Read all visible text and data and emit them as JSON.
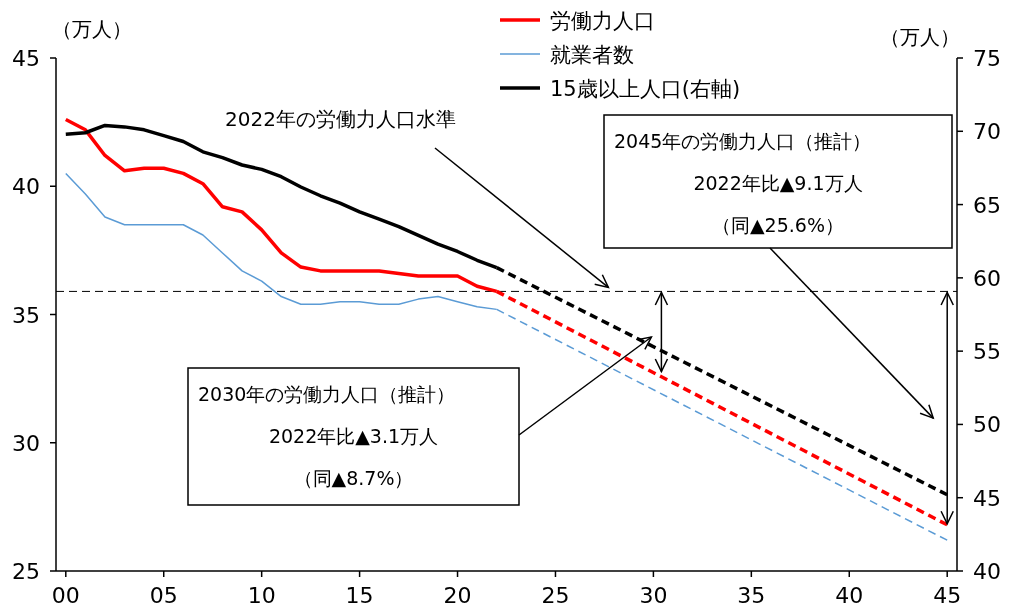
{
  "chart_data": {
    "type": "line",
    "ylabel": "（万人）",
    "y2label": "（万人）",
    "xlim": [
      1999.5,
      2045.5
    ],
    "xticks": [
      {
        "value": 2000,
        "label": "00"
      },
      {
        "value": 2005,
        "label": "05"
      },
      {
        "value": 2010,
        "label": "10"
      },
      {
        "value": 2015,
        "label": "15"
      },
      {
        "value": 2020,
        "label": "20"
      },
      {
        "value": 2025,
        "label": "25"
      },
      {
        "value": 2030,
        "label": "30"
      },
      {
        "value": 2035,
        "label": "35"
      },
      {
        "value": 2040,
        "label": "40"
      },
      {
        "value": 2045,
        "label": "45"
      }
    ],
    "ylim": [
      25,
      45
    ],
    "yticks": [
      25,
      30,
      35,
      40,
      45
    ],
    "y2lim": [
      40,
      75
    ],
    "y2ticks": [
      40,
      45,
      50,
      55,
      60,
      65,
      70,
      75
    ],
    "grid": false,
    "legend": "top",
    "marker": "none",
    "series": [
      {
        "name": "労働力人口",
        "color": "#ff0000",
        "line_style": "solid",
        "x": [
          2000,
          2001,
          2002,
          2003,
          2004,
          2005,
          2006,
          2007,
          2008,
          2009,
          2010,
          2011,
          2012,
          2013,
          2014,
          2015,
          2016,
          2017,
          2018,
          2019,
          2020,
          2021,
          2022
        ],
        "values": [
          42.6,
          42.2,
          41.2,
          40.6,
          40.7,
          40.7,
          40.5,
          40.1,
          39.2,
          39.0,
          38.3,
          37.4,
          36.85,
          36.7,
          36.7,
          36.7,
          36.7,
          36.6,
          36.5,
          36.5,
          36.5,
          36.1,
          35.9
        ]
      },
      {
        "name": "就業者数",
        "color": "#5b9bd5",
        "line_style": "solid",
        "x": [
          2000,
          2001,
          2002,
          2003,
          2004,
          2005,
          2006,
          2007,
          2008,
          2009,
          2010,
          2011,
          2012,
          2013,
          2014,
          2015,
          2016,
          2017,
          2018,
          2019,
          2020,
          2021,
          2022
        ],
        "values": [
          40.5,
          39.7,
          38.8,
          38.5,
          38.5,
          38.5,
          38.5,
          38.1,
          37.4,
          36.7,
          36.3,
          35.7,
          35.4,
          35.4,
          35.5,
          35.5,
          35.4,
          35.4,
          35.6,
          35.7,
          35.5,
          35.3,
          35.2
        ]
      },
      {
        "name": "15歳以上人口(右軸)",
        "color": "#000000",
        "line_style": "solid",
        "axis": "y2",
        "x": [
          2000,
          2001,
          2002,
          2003,
          2004,
          2005,
          2006,
          2007,
          2008,
          2009,
          2010,
          2011,
          2012,
          2013,
          2014,
          2015,
          2016,
          2017,
          2018,
          2019,
          2020,
          2021,
          2022
        ],
        "values": [
          69.8,
          69.9,
          70.4,
          70.3,
          70.1,
          69.7,
          69.3,
          68.6,
          68.2,
          67.7,
          67.4,
          66.9,
          66.2,
          65.6,
          65.1,
          64.5,
          64.0,
          63.5,
          62.9,
          62.3,
          61.8,
          61.2,
          60.7
        ]
      },
      {
        "color": "#ff0000",
        "line_style": "dashed",
        "x": [
          2022,
          2045
        ],
        "values": [
          35.9,
          26.8
        ]
      },
      {
        "color": "#5b9bd5",
        "line_style": "dashed",
        "x": [
          2022,
          2045
        ],
        "values": [
          35.2,
          26.2
        ]
      },
      {
        "color": "#000000",
        "line_style": "dashed",
        "axis": "y2",
        "x": [
          2022,
          2045
        ],
        "values": [
          60.7,
          45.2
        ]
      }
    ],
    "ref_lines": [
      {
        "axis": "y",
        "value": 35.9,
        "label": "2022年の労働力人口水準",
        "line_style": "dashed",
        "color": "#000000"
      }
    ],
    "annotations": [
      "2030年の労働力人口（推計）",
      "2022年比▲3.1万人",
      "（同▲8.7%）",
      "2045年の労働力人口（推計）",
      "2022年比▲9.1万人",
      "（同▲25.6%）"
    ]
  }
}
